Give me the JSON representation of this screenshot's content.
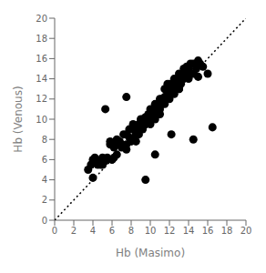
{
  "chart_data": {
    "type": "scatter",
    "xlabel": "Hb (Masimo)",
    "ylabel": "Hb (Venous)",
    "xlim": [
      0,
      20
    ],
    "ylim": [
      0,
      20
    ],
    "xticks": [
      0,
      2,
      4,
      6,
      8,
      10,
      12,
      14,
      16,
      18,
      20
    ],
    "yticks": [
      0,
      2,
      4,
      6,
      8,
      10,
      12,
      14,
      16,
      18,
      20
    ],
    "grid": false,
    "series": [
      {
        "type": "scatter",
        "marker": "circle",
        "color": "#000000",
        "x": [
          3.5,
          3.8,
          4.0,
          4.2,
          4.3,
          4.5,
          4.8,
          5.0,
          5.0,
          5.2,
          5.3,
          5.5,
          5.8,
          5.8,
          6.0,
          6.2,
          6.2,
          6.5,
          6.5,
          6.8,
          7.0,
          7.2,
          7.5,
          7.5,
          7.8,
          7.8,
          8.0,
          8.0,
          8.2,
          8.5,
          8.5,
          8.8,
          8.8,
          9.0,
          9.0,
          9.0,
          9.2,
          9.2,
          9.5,
          9.5,
          9.8,
          9.8,
          10.0,
          10.0,
          10.0,
          10.2,
          10.2,
          10.5,
          10.5,
          10.5,
          10.8,
          10.8,
          11.0,
          11.0,
          11.0,
          11.2,
          11.2,
          11.5,
          11.5,
          11.5,
          11.8,
          11.8,
          12.0,
          12.0,
          12.0,
          12.2,
          12.2,
          12.5,
          12.5,
          12.5,
          12.8,
          12.8,
          13.0,
          13.0,
          13.0,
          13.2,
          13.2,
          13.5,
          13.5,
          13.8,
          13.8,
          14.0,
          14.0,
          14.2,
          14.2,
          14.5,
          14.5,
          14.8,
          15.0,
          15.2,
          15.5,
          4.0,
          4.5,
          5.5,
          6.0,
          6.5,
          7.0,
          7.5,
          8.0,
          8.5,
          9.0,
          9.5,
          10.0,
          10.5,
          11.0,
          11.5,
          12.0,
          12.5,
          13.0,
          13.5,
          14.0,
          15.0,
          16.0,
          16.5,
          7.5,
          8.0,
          9.5,
          10.5,
          11.2,
          12.2,
          14.5
        ],
        "values": [
          5.0,
          5.5,
          6.0,
          6.2,
          6.0,
          5.8,
          5.5,
          5.5,
          6.2,
          5.8,
          11.0,
          6.0,
          7.5,
          7.8,
          6.0,
          6.2,
          7.2,
          8.0,
          7.5,
          7.8,
          7.2,
          8.5,
          7.5,
          8.5,
          8.2,
          9.0,
          8.0,
          9.0,
          9.5,
          8.5,
          9.2,
          8.5,
          9.5,
          9.0,
          10.0,
          9.5,
          9.0,
          10.0,
          9.5,
          10.2,
          10.0,
          10.5,
          9.5,
          10.0,
          11.0,
          10.0,
          11.0,
          10.5,
          11.0,
          11.5,
          10.5,
          11.5,
          10.5,
          11.0,
          12.0,
          11.5,
          12.0,
          11.5,
          12.0,
          13.0,
          12.5,
          13.5,
          12.0,
          12.5,
          13.0,
          12.5,
          13.5,
          13.0,
          13.5,
          14.0,
          13.0,
          14.0,
          13.0,
          13.5,
          14.5,
          13.5,
          14.0,
          14.0,
          15.0,
          14.2,
          15.2,
          14.0,
          15.0,
          14.5,
          15.5,
          14.5,
          15.5,
          15.0,
          15.8,
          15.5,
          15.2,
          4.2,
          5.5,
          6.2,
          6.0,
          6.5,
          7.5,
          7.0,
          8.0,
          7.8,
          9.0,
          9.5,
          10.5,
          10.0,
          11.5,
          12.2,
          13.5,
          12.5,
          13.0,
          14.5,
          14.2,
          14.2,
          14.5,
          9.2,
          12.2,
          7.8,
          4.0,
          6.5,
          11.5,
          8.5,
          8.0
        ]
      },
      {
        "type": "line",
        "line_style": "dotted",
        "color": "#000000",
        "x": [
          0,
          20
        ],
        "values": [
          0,
          20
        ]
      }
    ]
  }
}
